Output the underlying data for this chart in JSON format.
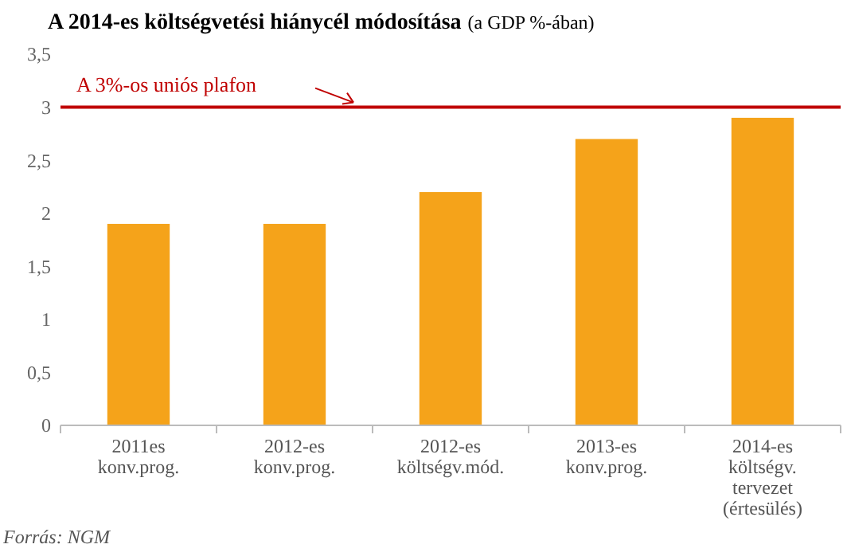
{
  "chart_data": {
    "type": "bar",
    "title": "A 2014-es költségvetési hiánycél módosítása",
    "subtitle": "(a GDP %-ában)",
    "categories": [
      "2011es\nkonv.prog.",
      "2012-es\nkonv.prog.",
      "2012-es\nköltségv.mód.",
      "2013-es\nkonv.prog.",
      "2014-es\nköltségv.\ntervezet\n(értesülés)"
    ],
    "values": [
      1.9,
      1.9,
      2.2,
      2.7,
      2.9
    ],
    "color": "#f5a31a",
    "ylim": [
      0,
      3.5
    ],
    "yticks": [
      0,
      {
        "value": 0.5,
        "label": "0,5"
      },
      1,
      {
        "value": 1.5,
        "label": "1,5"
      },
      2,
      {
        "value": 2.5,
        "label": "2,5"
      },
      3,
      {
        "value": 3.5,
        "label": "3,5"
      }
    ],
    "ref_lines": [
      {
        "axis": "y",
        "value": 3,
        "label": "A 3%-os uniós plafon",
        "color": "#c00000"
      }
    ],
    "annotations": [
      "Forrás: NGM"
    ]
  }
}
